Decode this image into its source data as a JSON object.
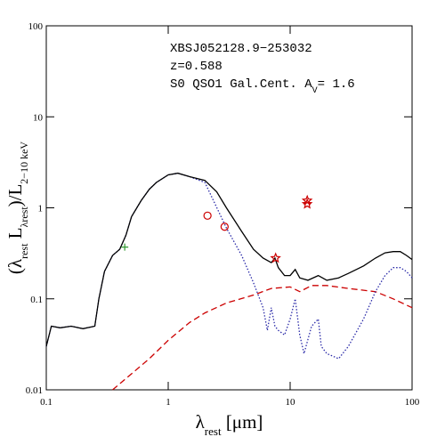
{
  "chart_data": {
    "type": "line",
    "xlog": true,
    "ylog": true,
    "annotations": [
      [
        {
          "text": "XBSJ052128.9−253032",
          "sub": false
        }
      ],
      [
        {
          "text": "z=0.588",
          "sub": false
        }
      ],
      [
        {
          "text": "S0 QSO1 Gal.Cent. A",
          "sub": false
        },
        {
          "text": "V",
          "sub": true
        },
        {
          "text": "= 1.6",
          "sub": false
        }
      ]
    ],
    "x_label": [
      {
        "text": "λ",
        "sub": false
      },
      {
        "text": "rest",
        "sub": true
      },
      {
        "text": "  [μm]",
        "sub": false
      }
    ],
    "y_label": [
      {
        "text": "(λ",
        "sub": false
      },
      {
        "text": "rest",
        "sub": true
      },
      {
        "text": "  L",
        "sub": false
      },
      {
        "text": "λrest",
        "sub": true
      },
      {
        "text": ")/L",
        "sub": false
      },
      {
        "text": "2−10 keV",
        "sub": true
      }
    ],
    "xlim": [
      0.1,
      100
    ],
    "ylim": [
      0.01,
      100
    ],
    "xticks": [
      0.1,
      1,
      10,
      100
    ],
    "yticks": [
      0.01,
      0.1,
      1,
      10,
      100
    ],
    "series": [
      {
        "style": "dashed",
        "color": "#cc0000",
        "x": [
          0.35,
          0.5,
          0.7,
          1,
          1.5,
          2,
          3,
          5,
          7,
          10,
          12,
          15,
          20,
          30,
          50,
          70,
          100
        ],
        "values": [
          0.01,
          0.015,
          0.022,
          0.035,
          0.055,
          0.07,
          0.09,
          0.11,
          0.13,
          0.135,
          0.12,
          0.14,
          0.14,
          0.13,
          0.12,
          0.1,
          0.08
        ]
      },
      {
        "style": "dotted",
        "color": "#2a2aa8",
        "x": [
          0.1,
          0.11,
          0.13,
          0.16,
          0.2,
          0.25,
          0.27,
          0.3,
          0.35,
          0.4,
          0.45,
          0.5,
          0.6,
          0.7,
          0.8,
          1,
          1.2,
          1.5,
          2,
          3,
          4,
          5,
          6,
          6.5,
          7,
          7.5,
          8,
          9,
          10,
          11,
          12,
          13,
          15,
          17,
          18,
          20,
          25,
          30,
          40,
          50,
          60,
          70,
          80,
          90,
          100
        ],
        "values": [
          0.03,
          0.05,
          0.048,
          0.05,
          0.047,
          0.05,
          0.1,
          0.2,
          0.3,
          0.35,
          0.5,
          0.8,
          1.2,
          1.6,
          1.9,
          2.3,
          2.4,
          2.2,
          1.9,
          0.6,
          0.3,
          0.15,
          0.08,
          0.045,
          0.08,
          0.05,
          0.045,
          0.04,
          0.06,
          0.1,
          0.04,
          0.025,
          0.05,
          0.06,
          0.03,
          0.025,
          0.022,
          0.03,
          0.06,
          0.12,
          0.18,
          0.22,
          0.22,
          0.2,
          0.17
        ]
      },
      {
        "style": "solid",
        "color": "#000000",
        "x": [
          0.1,
          0.11,
          0.13,
          0.16,
          0.2,
          0.25,
          0.27,
          0.3,
          0.35,
          0.4,
          0.45,
          0.5,
          0.6,
          0.7,
          0.8,
          1,
          1.2,
          1.5,
          2,
          2.5,
          3,
          4,
          5,
          6,
          7,
          7.5,
          8,
          9,
          10,
          11,
          12,
          14,
          17,
          20,
          25,
          30,
          40,
          50,
          60,
          70,
          80,
          90,
          100
        ],
        "values": [
          0.03,
          0.05,
          0.048,
          0.05,
          0.047,
          0.05,
          0.1,
          0.2,
          0.3,
          0.35,
          0.5,
          0.8,
          1.2,
          1.6,
          1.9,
          2.3,
          2.4,
          2.2,
          2.0,
          1.5,
          1.0,
          0.55,
          0.35,
          0.28,
          0.25,
          0.28,
          0.22,
          0.18,
          0.18,
          0.21,
          0.17,
          0.16,
          0.18,
          0.16,
          0.17,
          0.19,
          0.23,
          0.28,
          0.32,
          0.33,
          0.33,
          0.3,
          0.27
        ]
      },
      {
        "style": "marker",
        "marker": "circle",
        "color": "#cc0000",
        "x": [
          2.1,
          2.9
        ],
        "values": [
          0.82,
          0.62
        ]
      },
      {
        "style": "marker",
        "marker": "star",
        "color": "#cc0000",
        "x": [
          7.6,
          13.8,
          13.8
        ],
        "values": [
          0.28,
          1.2,
          1.1
        ]
      },
      {
        "style": "marker",
        "marker": "cross",
        "color": "#339933",
        "x": [
          0.44
        ],
        "values": [
          0.37
        ]
      }
    ]
  }
}
